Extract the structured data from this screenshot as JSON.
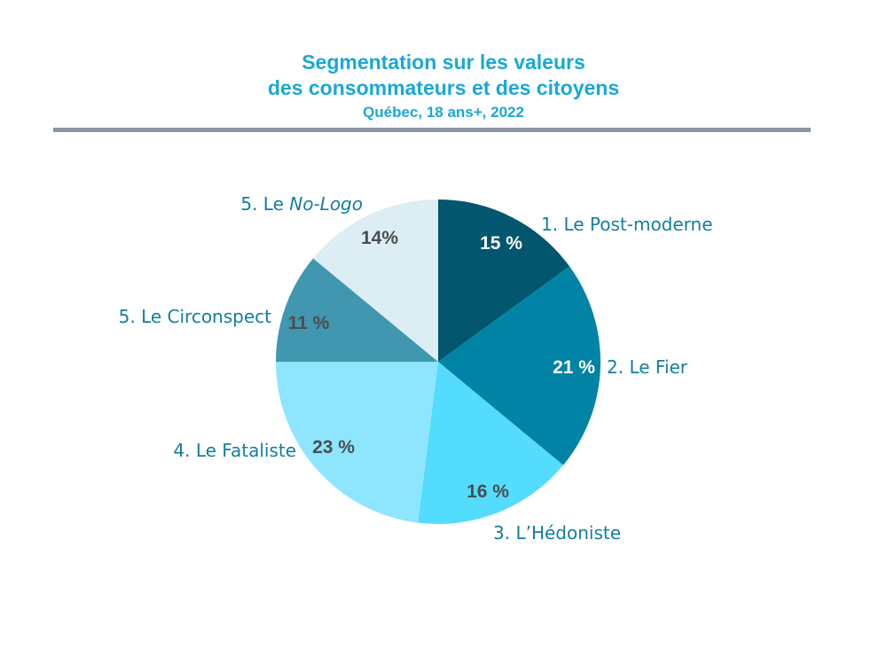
{
  "header": {
    "title_line1": "Segmentation sur les valeurs",
    "title_line2": "des consommateurs et des citoyens",
    "subtitle": "Québec, 18 ans+, 2022"
  },
  "chart_data": {
    "type": "pie",
    "title": "Segmentation sur les valeurs des consommateurs et des citoyens",
    "subtitle": "Québec, 18 ans+, 2022",
    "start": "12 o'clock, clockwise",
    "slices": [
      {
        "label": "1. Le Post-moderne",
        "value": 15,
        "value_label": "15 %",
        "color": "#02566d"
      },
      {
        "label": "2. Le Fier",
        "value": 21,
        "value_label": "21 %",
        "color": "#0083a5"
      },
      {
        "label": "3. L’Hédoniste",
        "value": 16,
        "value_label": "16 %",
        "color": "#53dcfe"
      },
      {
        "label": "4. Le Fataliste",
        "value": 23,
        "value_label": "23 %",
        "color": "#8de6fe"
      },
      {
        "label": "5. Le Circonspect",
        "value": 11,
        "value_label": "11 %",
        "color": "#4196b0"
      },
      {
        "label_prefix": "5. Le ",
        "label_italic": "No-Logo",
        "value": 14,
        "value_label": "14%",
        "color": "#dcedf4"
      }
    ],
    "value_label_colors": {
      "light": "#ffffff",
      "dark": "#4d4d4d"
    },
    "category_label_color": "#127ea0"
  }
}
